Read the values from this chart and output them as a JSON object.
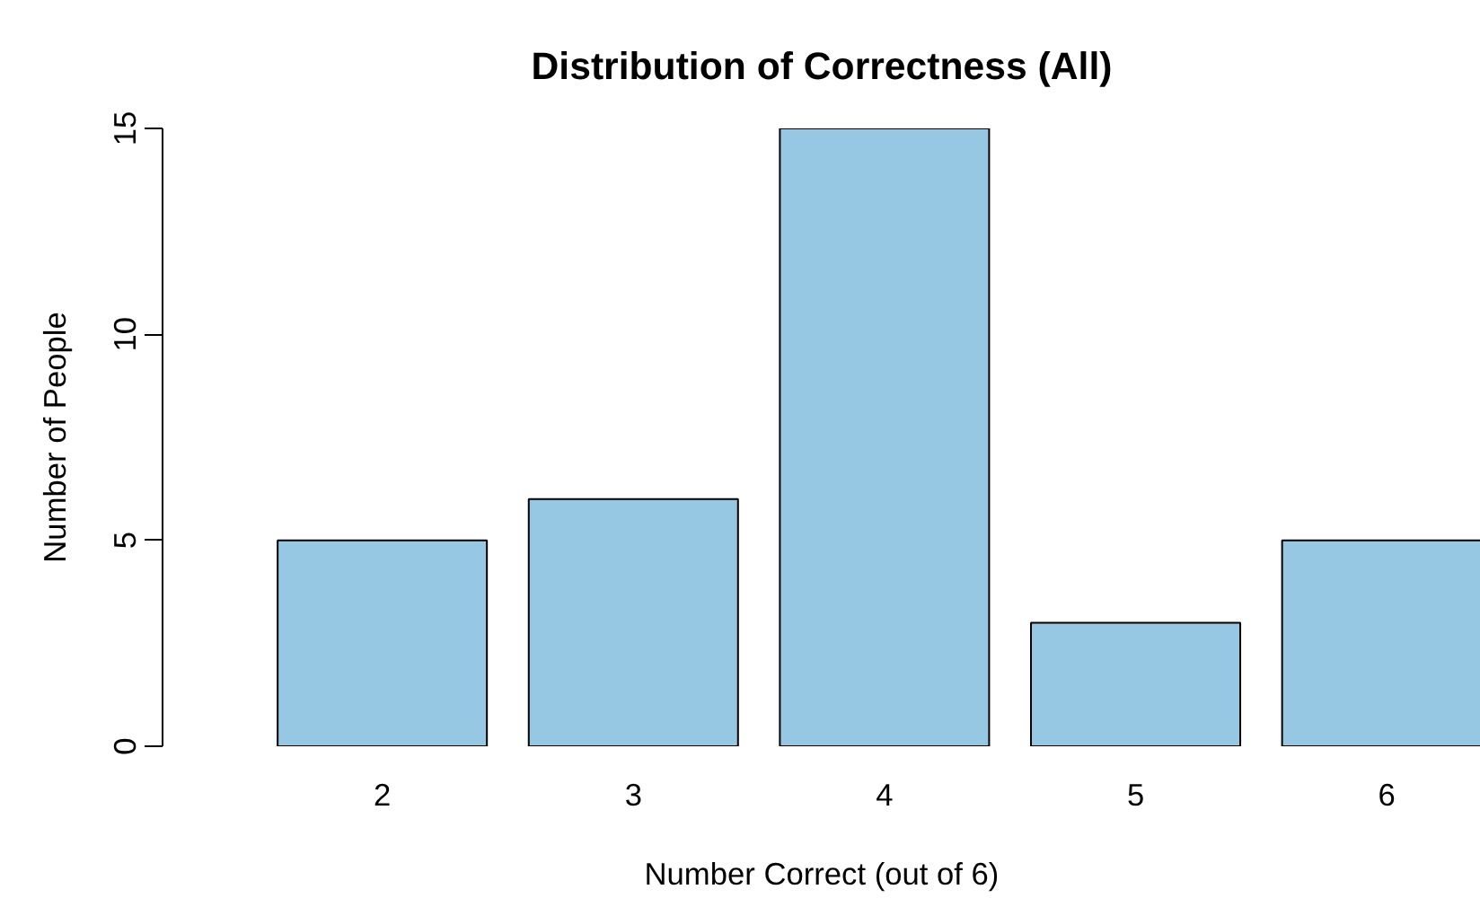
{
  "chart_data": {
    "type": "bar",
    "title": "Distribution of Correctness (All)",
    "xlabel": "Number Correct (out of 6)",
    "ylabel": "Number of People",
    "categories": [
      "2",
      "3",
      "4",
      "5",
      "6"
    ],
    "values": [
      5,
      6,
      15,
      3,
      5
    ],
    "color": "#96c7e3",
    "ylim": [
      0,
      15
    ],
    "yticks": [
      0,
      5,
      10,
      15
    ],
    "grid": false
  }
}
